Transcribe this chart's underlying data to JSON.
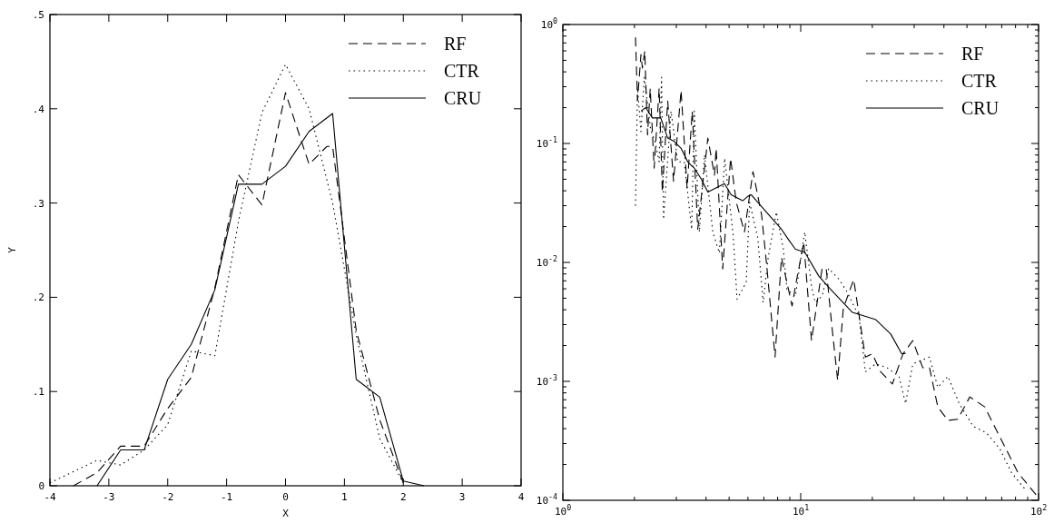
{
  "chart_data": [
    {
      "type": "line",
      "xlabel": "X",
      "ylabel": "Y",
      "xlim": [
        -4,
        4
      ],
      "ylim": [
        0,
        0.5
      ],
      "xticks": [
        -4,
        -3,
        -2,
        -1,
        0,
        1,
        2,
        3,
        4
      ],
      "yticks": [
        0,
        {
          "value": 0.1,
          "label": ".1"
        },
        {
          "value": 0.2,
          "label": ".2"
        },
        {
          "value": 0.3,
          "label": ".3"
        },
        {
          "value": 0.4,
          "label": ".4"
        },
        {
          "value": 0.5,
          "label": ".5"
        }
      ],
      "legend": "top right",
      "grid": false,
      "series": [
        {
          "name": "RF",
          "color": "#000000",
          "line_style": "dashed",
          "x": [
            -3.6,
            -3.2,
            -2.8,
            -2.4,
            -2.0,
            -1.6,
            -1.2,
            -0.8,
            -0.4,
            0,
            0.4,
            0.7,
            0.8,
            1.2,
            1.6,
            2.0
          ],
          "values": [
            0,
            0.014,
            0.042,
            0.042,
            0.082,
            0.115,
            0.21,
            0.33,
            0.298,
            0.417,
            0.341,
            0.36,
            0.36,
            0.165,
            0.07,
            0.003
          ]
        },
        {
          "name": "CTR",
          "color": "#000000",
          "line_style": "dotted",
          "x": [
            -4.0,
            -3.2,
            -2.8,
            -2.4,
            -2.0,
            -1.6,
            -1.2,
            -0.8,
            -0.4,
            0,
            0.4,
            0.8,
            1.2,
            1.6,
            2.0
          ],
          "values": [
            0.003,
            0.027,
            0.022,
            0.038,
            0.065,
            0.143,
            0.138,
            0.28,
            0.396,
            0.447,
            0.4,
            0.3,
            0.16,
            0.05,
            0.003
          ]
        },
        {
          "name": "CRU",
          "color": "#000000",
          "line_style": "solid",
          "x": [
            -3.2,
            -2.8,
            -2.4,
            -2.0,
            -1.6,
            -1.2,
            -0.8,
            -0.4,
            0,
            0.4,
            0.8,
            1.2,
            1.6,
            2.0,
            2.35
          ],
          "values": [
            0,
            0.038,
            0.038,
            0.113,
            0.15,
            0.208,
            0.32,
            0.32,
            0.339,
            0.376,
            0.395,
            0.113,
            0.094,
            0.005,
            0
          ]
        }
      ]
    },
    {
      "type": "line",
      "log": "xy",
      "xlim": [
        1,
        100
      ],
      "ylim": [
        0.0001,
        1
      ],
      "xticks": [
        {
          "value": 1,
          "label": "10$^{0}$"
        },
        {
          "value": 2,
          "label": null
        },
        {
          "value": 3,
          "label": null
        },
        {
          "value": 4,
          "label": null
        },
        {
          "value": 5,
          "label": null
        },
        {
          "value": 6,
          "label": null
        },
        {
          "value": 7,
          "label": null
        },
        {
          "value": 8,
          "label": null
        },
        {
          "value": 9,
          "label": null
        },
        {
          "value": 10,
          "label": "10$^{1}$"
        },
        {
          "value": 20,
          "label": null
        },
        {
          "value": 30,
          "label": null
        },
        {
          "value": 40,
          "label": null
        },
        {
          "value": 50,
          "label": null
        },
        {
          "value": 60,
          "label": null
        },
        {
          "value": 70,
          "label": null
        },
        {
          "value": 80,
          "label": null
        },
        {
          "value": 90,
          "label": null
        },
        {
          "value": 100,
          "label": "10$^{2}$"
        }
      ],
      "yticks": [
        {
          "value": 0.0001,
          "label": "10$^{-4}$"
        },
        {
          "value": 0.0002,
          "label": null
        },
        {
          "value": 0.0003,
          "label": null
        },
        {
          "value": 0.0004,
          "label": null
        },
        {
          "value": 0.0005,
          "label": null
        },
        {
          "value": 0.0006,
          "label": null
        },
        {
          "value": 0.0007,
          "label": null
        },
        {
          "value": 0.0008,
          "label": null
        },
        {
          "value": 0.0009,
          "label": null
        },
        {
          "value": 0.001,
          "label": "10$^{-3}$"
        },
        {
          "value": 0.002,
          "label": null
        },
        {
          "value": 0.003,
          "label": null
        },
        {
          "value": 0.004,
          "label": null
        },
        {
          "value": 0.005,
          "label": null
        },
        {
          "value": 0.006,
          "label": null
        },
        {
          "value": 0.007,
          "label": null
        },
        {
          "value": 0.008,
          "label": null
        },
        {
          "value": 0.009,
          "label": null
        },
        {
          "value": 0.01,
          "label": "10$^{-2}$"
        },
        {
          "value": 0.02,
          "label": null
        },
        {
          "value": 0.03,
          "label": null
        },
        {
          "value": 0.04,
          "label": null
        },
        {
          "value": 0.05,
          "label": null
        },
        {
          "value": 0.06,
          "label": null
        },
        {
          "value": 0.07,
          "label": null
        },
        {
          "value": 0.08,
          "label": null
        },
        {
          "value": 0.09,
          "label": null
        },
        {
          "value": 0.1,
          "label": "10$^{-1}$"
        },
        {
          "value": 0.2,
          "label": null
        },
        {
          "value": 0.3,
          "label": null
        },
        {
          "value": 0.4,
          "label": null
        },
        {
          "value": 0.5,
          "label": null
        },
        {
          "value": 0.6,
          "label": null
        },
        {
          "value": 0.7,
          "label": null
        },
        {
          "value": 0.8,
          "label": null
        },
        {
          "value": 0.9,
          "label": null
        },
        {
          "value": 1,
          "label": "10$^{0}$"
        }
      ],
      "legend": "top right",
      "grid": false,
      "series": [
        {
          "name": "RF",
          "color": "#000000",
          "line_style": "dashed",
          "x": [
            2.02,
            2.06,
            2.13,
            2.16,
            2.21,
            2.27,
            2.33,
            2.42,
            2.54,
            2.62,
            2.76,
            2.92,
            3.14,
            3.33,
            3.5,
            3.69,
            4.07,
            4.34,
            4.41,
            4.7,
            5.07,
            5.36,
            5.8,
            6.3,
            6.85,
            7.2,
            7.8,
            8.3,
            9.2,
            9.5,
            10.3,
            11.1,
            12.3,
            12.8,
            13.5,
            14.3,
            15.1,
            16.7,
            18.7,
            20,
            21.7,
            24.3,
            26.9,
            29.6,
            32.6,
            34.8,
            37.7,
            41.6,
            45.7,
            51.4,
            59.4,
            68.8,
            82,
            100
          ],
          "values": [
            0.78,
            0.23,
            0.56,
            0.43,
            0.6,
            0.118,
            0.29,
            0.062,
            0.29,
            0.039,
            0.227,
            0.048,
            0.28,
            0.042,
            0.187,
            0.019,
            0.111,
            0.054,
            0.091,
            0.0088,
            0.075,
            0.032,
            0.018,
            0.058,
            0.025,
            0.0093,
            0.0016,
            0.011,
            0.0043,
            0.0063,
            0.0148,
            0.0022,
            0.0089,
            0.0089,
            0.003,
            0.00102,
            0.0041,
            0.0072,
            0.0016,
            0.0017,
            0.0012,
            0.00095,
            0.0017,
            0.0022,
            0.0013,
            0.0013,
            0.00061,
            0.00047,
            0.00048,
            0.00074,
            0.00061,
            0.00034,
            0.00017,
            0.000105
          ]
        },
        {
          "name": "CTR",
          "color": "#000000",
          "line_style": "dotted",
          "x": [
            2.02,
            2.06,
            2.13,
            2.2,
            2.34,
            2.44,
            2.54,
            2.6,
            2.65,
            2.85,
            3.04,
            3.24,
            3.48,
            3.57,
            3.75,
            3.94,
            4.27,
            4.55,
            4.79,
            5.2,
            5.4,
            5.9,
            6.1,
            6.6,
            6.95,
            7.3,
            7.9,
            8.45,
            8.75,
            9.5,
            10.4,
            11.1,
            11.5,
            12.3,
            13.1,
            14.5,
            15.7,
            17.6,
            18.7,
            20.6,
            23.1,
            25.9,
            27.6,
            29.6,
            34.8,
            37.7,
            41.6,
            46.4,
            53,
            60.3,
            68.8,
            77,
            89
          ],
          "values": [
            0.03,
            0.29,
            0.126,
            0.36,
            0.13,
            0.104,
            0.07,
            0.36,
            0.023,
            0.187,
            0.07,
            0.07,
            0.019,
            0.187,
            0.018,
            0.08,
            0.018,
            0.012,
            0.075,
            0.017,
            0.0049,
            0.0068,
            0.032,
            0.016,
            0.0046,
            0.011,
            0.0265,
            0.013,
            0.0059,
            0.0052,
            0.018,
            0.0063,
            0.0046,
            0.0052,
            0.0089,
            0.0072,
            0.0056,
            0.0035,
            0.0012,
            0.0014,
            0.0013,
            0.0011,
            0.00065,
            0.0014,
            0.0016,
            0.00089,
            0.0011,
            0.00065,
            0.00042,
            0.00037,
            0.00027,
            0.00017,
            0.00012
          ]
        },
        {
          "name": "CRU",
          "color": "#000000",
          "line_style": "solid",
          "x": [
            2.13,
            2.23,
            2.38,
            2.58,
            2.76,
            2.94,
            3.14,
            3.35,
            3.57,
            3.8,
            4.07,
            4.78,
            5.1,
            5.7,
            6.0,
            6.2,
            7.4,
            8.3,
            8.9,
            9.5,
            10.4,
            11.9,
            13.3,
            16.5,
            20.7,
            23.9,
            26.6,
            27.6
          ],
          "values": [
            0.187,
            0.2,
            0.164,
            0.164,
            0.111,
            0.104,
            0.091,
            0.07,
            0.062,
            0.051,
            0.039,
            0.046,
            0.037,
            0.033,
            0.036,
            0.037,
            0.0247,
            0.019,
            0.0155,
            0.0129,
            0.0122,
            0.0077,
            0.006,
            0.0038,
            0.0033,
            0.0025,
            0.0017,
            0.00172
          ]
        }
      ]
    }
  ]
}
